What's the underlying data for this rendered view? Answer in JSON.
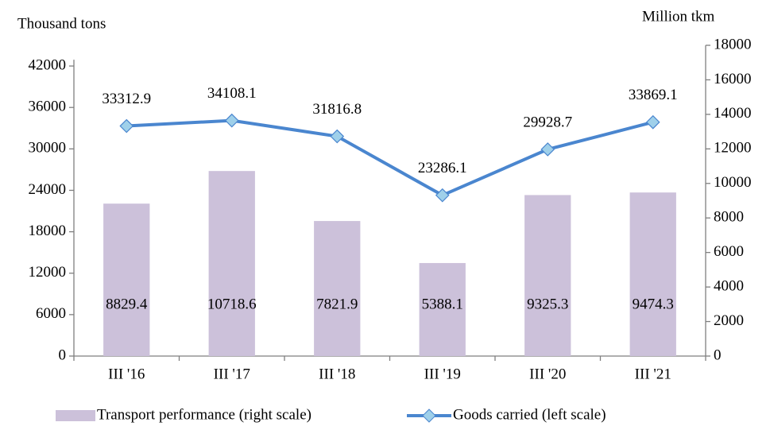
{
  "chart_data": {
    "type": "bar",
    "y_label": "Thousand tons",
    "y2_label": "Million tkm",
    "categories": [
      "III '16",
      "III '17",
      "III '18",
      "III '19",
      "III '20",
      "III '21"
    ],
    "ylim": [
      0,
      45000
    ],
    "yticks": [
      0,
      6000,
      12000,
      18000,
      24000,
      30000,
      36000,
      42000
    ],
    "y2lim": [
      0,
      18000
    ],
    "y2ticks": [
      0,
      2000,
      4000,
      6000,
      8000,
      10000,
      12000,
      14000,
      16000,
      18000
    ],
    "grid": false,
    "legend": "bottom",
    "series": [
      {
        "name": "Transport performance (right scale)",
        "type": "bar",
        "axis": "y2",
        "color": "#ccc1da",
        "values": [
          8829.4,
          10718.6,
          7821.9,
          5388.1,
          9325.3,
          9474.3
        ]
      },
      {
        "name": "Goods carried (left scale)",
        "type": "line",
        "color": "#4a86cf",
        "marker_color": "#9fd0ea",
        "values": [
          33312.9,
          34108.1,
          31816.8,
          23286.1,
          29928.7,
          33869.1
        ]
      }
    ]
  }
}
